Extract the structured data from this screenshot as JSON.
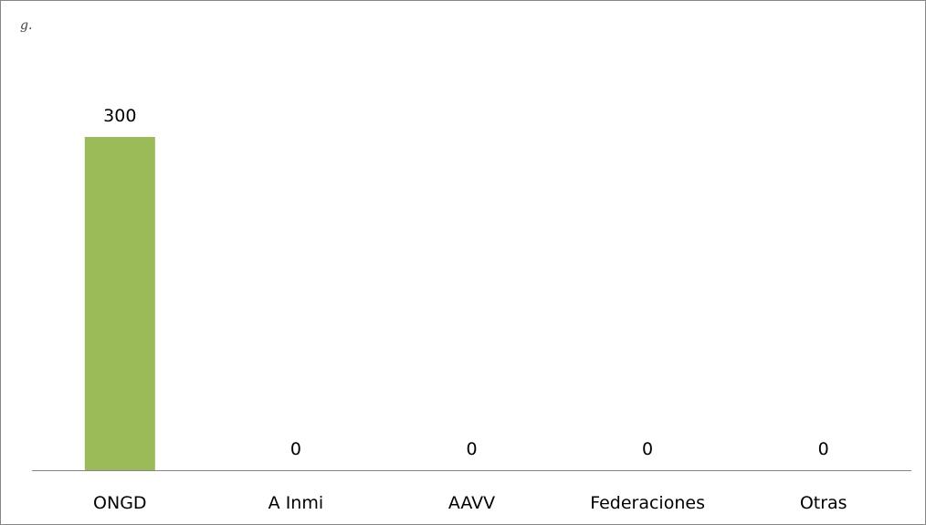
{
  "corner_label": "g.",
  "chart_data": {
    "type": "bar",
    "categories": [
      "ONGD",
      "A Inmi",
      "AAVV",
      "Federaciones",
      "Otras"
    ],
    "values": [
      300,
      0,
      0,
      0,
      0
    ],
    "data_labels": [
      "300",
      "0",
      "0",
      "0",
      "0"
    ],
    "title": "",
    "xlabel": "",
    "ylabel": "",
    "ylim": [
      0,
      300
    ],
    "grid": false,
    "legend": "none",
    "bar_color": "#9bbb59",
    "axis_color": "#868686",
    "border_color": "#868686"
  }
}
